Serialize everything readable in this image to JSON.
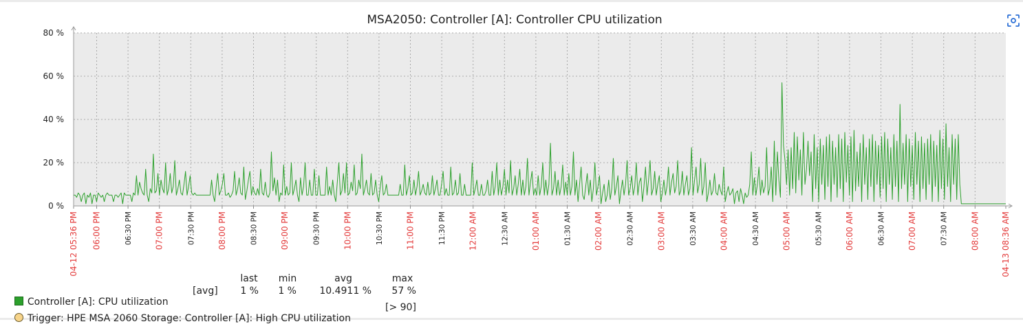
{
  "chart_data": {
    "type": "line",
    "title": "MSA2050: Controller [A]: Controller CPU utilization",
    "y_ticks": [
      "80 %",
      "60 %",
      "40 %",
      "20 %",
      "0 %"
    ],
    "ylim": [
      0,
      80
    ],
    "x_ticks": [
      {
        "label": "04-12 05:36 PM",
        "color": "red"
      },
      {
        "label": "06:00 PM",
        "color": "red"
      },
      {
        "label": "06:30 PM",
        "color": "black"
      },
      {
        "label": "07:00 PM",
        "color": "red"
      },
      {
        "label": "07:30 PM",
        "color": "black"
      },
      {
        "label": "08:00 PM",
        "color": "red"
      },
      {
        "label": "08:30 PM",
        "color": "black"
      },
      {
        "label": "09:00 PM",
        "color": "red"
      },
      {
        "label": "09:30 PM",
        "color": "black"
      },
      {
        "label": "10:00 PM",
        "color": "red"
      },
      {
        "label": "10:30 PM",
        "color": "black"
      },
      {
        "label": "11:00 PM",
        "color": "red"
      },
      {
        "label": "11:30 PM",
        "color": "black"
      },
      {
        "label": "12:00 AM",
        "color": "red"
      },
      {
        "label": "12:30 AM",
        "color": "black"
      },
      {
        "label": "01:00 AM",
        "color": "red"
      },
      {
        "label": "01:30 AM",
        "color": "black"
      },
      {
        "label": "02:00 AM",
        "color": "red"
      },
      {
        "label": "02:30 AM",
        "color": "black"
      },
      {
        "label": "03:00 AM",
        "color": "red"
      },
      {
        "label": "03:30 AM",
        "color": "black"
      },
      {
        "label": "04:00 AM",
        "color": "red"
      },
      {
        "label": "04:30 AM",
        "color": "black"
      },
      {
        "label": "05:00 AM",
        "color": "red"
      },
      {
        "label": "05:30 AM",
        "color": "black"
      },
      {
        "label": "06:00 AM",
        "color": "red"
      },
      {
        "label": "06:30 AM",
        "color": "black"
      },
      {
        "label": "07:00 AM",
        "color": "red"
      },
      {
        "label": "07:30 AM",
        "color": "black"
      },
      {
        "label": "08:00 AM",
        "color": "red"
      },
      {
        "label": "04-13 08:36 AM",
        "color": "red"
      }
    ],
    "series": [
      {
        "name": "Controller [A]: CPU utilization",
        "color": "#2ca02c",
        "values": [
          5,
          5,
          4,
          6,
          5,
          2,
          5,
          6,
          1,
          5,
          4,
          6,
          1,
          5,
          5,
          2,
          6,
          5,
          4,
          5,
          2,
          5,
          6,
          5,
          5,
          5,
          2,
          5,
          5,
          4,
          5,
          6,
          1,
          6,
          5,
          5,
          5,
          5,
          2,
          6,
          5,
          14,
          5,
          11,
          8,
          6,
          5,
          17,
          5,
          2,
          8,
          6,
          24,
          6,
          7,
          15,
          5,
          12,
          8,
          6,
          20,
          5,
          8,
          15,
          6,
          9,
          21,
          5,
          8,
          12,
          6,
          5,
          10,
          16,
          5,
          9,
          14,
          6,
          5,
          6,
          5,
          5,
          5,
          5,
          5,
          5,
          5,
          5,
          5,
          5,
          12,
          5,
          2,
          9,
          15,
          5,
          7,
          10,
          15,
          5,
          5,
          6,
          4,
          5,
          7,
          16,
          5,
          8,
          13,
          6,
          5,
          18,
          3,
          7,
          12,
          16,
          5,
          9,
          6,
          5,
          8,
          5,
          17,
          6,
          5,
          11,
          5,
          4,
          6,
          25,
          7,
          13,
          5,
          12,
          2,
          6,
          5,
          19,
          5,
          9,
          5,
          6,
          20,
          5,
          8,
          12,
          5,
          2,
          13,
          5,
          9,
          20,
          5,
          5,
          12,
          5,
          5,
          17,
          5,
          5,
          14,
          5,
          5,
          5,
          5,
          18,
          5,
          9,
          5,
          12,
          5,
          2,
          11,
          20,
          5,
          7,
          15,
          6,
          20,
          5,
          6,
          11,
          7,
          19,
          5,
          6,
          12,
          8,
          24,
          5,
          8,
          12,
          6,
          5,
          15,
          5,
          6,
          12,
          5,
          2,
          9,
          14,
          5,
          6,
          10,
          5,
          5,
          5,
          5,
          5,
          5,
          5,
          5,
          10,
          5,
          5,
          19,
          5,
          8,
          14,
          5,
          6,
          12,
          5,
          9,
          16,
          5,
          7,
          10,
          6,
          5,
          11,
          5,
          6,
          14,
          5,
          8,
          12,
          5,
          5,
          10,
          16,
          5,
          8,
          5,
          5,
          18,
          5,
          6,
          12,
          5,
          6,
          15,
          5,
          5,
          10,
          5,
          5,
          5,
          5,
          20,
          5,
          8,
          12,
          5,
          5,
          10,
          5,
          5,
          7,
          12,
          5,
          5,
          16,
          5,
          9,
          20,
          5,
          12,
          5,
          9,
          17,
          5,
          12,
          6,
          21,
          5,
          8,
          14,
          5,
          10,
          17,
          5,
          12,
          5,
          9,
          22,
          5,
          11,
          16,
          5,
          8,
          5,
          14,
          5,
          9,
          20,
          5,
          12,
          5,
          10,
          29,
          5,
          8,
          16,
          5,
          12,
          5,
          9,
          19,
          5,
          11,
          5,
          15,
          5,
          9,
          25,
          5,
          12,
          2,
          10,
          18,
          5,
          3,
          9,
          15,
          5,
          12,
          2,
          8,
          20,
          5,
          9,
          14,
          1,
          6,
          10,
          2,
          5,
          12,
          3,
          8,
          22,
          5,
          9,
          14,
          1,
          7,
          12,
          5,
          10,
          21,
          5,
          8,
          14,
          5,
          9,
          20,
          5,
          11,
          13,
          2,
          9,
          18,
          5,
          12,
          21,
          5,
          8,
          16,
          5,
          10,
          14,
          2,
          6,
          12,
          5,
          9,
          18,
          5,
          11,
          15,
          6,
          9,
          21,
          5,
          7,
          16,
          5,
          10,
          14,
          5,
          8,
          27,
          5,
          12,
          18,
          6,
          10,
          22,
          5,
          9,
          20,
          2,
          6,
          12,
          5,
          7,
          15,
          6,
          5,
          10,
          7,
          5,
          18,
          2,
          6,
          9,
          5,
          6,
          8,
          1,
          6,
          7,
          2,
          8,
          5,
          1,
          6,
          4,
          5,
          10,
          25,
          5,
          13,
          5,
          10,
          18,
          5,
          12,
          6,
          9,
          27,
          5,
          8,
          18,
          2,
          30,
          5,
          25,
          12,
          4,
          57,
          28,
          21,
          10,
          26,
          5,
          27,
          8,
          34,
          6,
          32,
          12,
          26,
          5,
          34,
          10,
          17,
          30,
          14,
          25,
          2,
          33,
          8,
          27,
          2,
          31,
          10,
          28,
          3,
          32,
          9,
          33,
          2,
          30,
          10,
          27,
          4,
          33,
          8,
          31,
          2,
          34,
          11,
          28,
          5,
          32,
          2,
          35,
          7,
          25,
          9,
          29,
          2,
          33,
          10,
          27,
          3,
          31,
          9,
          33,
          2,
          30,
          10,
          28,
          4,
          32,
          8,
          34,
          2,
          31,
          10,
          27,
          3,
          33,
          9,
          30,
          2,
          47,
          8,
          29,
          10,
          33,
          2,
          31,
          9,
          28,
          3,
          34,
          10,
          30,
          2,
          32,
          8,
          29,
          3,
          31,
          10,
          33,
          2,
          30,
          9,
          28,
          2,
          35,
          8,
          31,
          3,
          38,
          9,
          27,
          2,
          33,
          10,
          31,
          3,
          33,
          10,
          1,
          1,
          1,
          1,
          1,
          1,
          1,
          1,
          1,
          1,
          1,
          1,
          1,
          1,
          1,
          1,
          1,
          1,
          1,
          1,
          1,
          1,
          1,
          1,
          1,
          1,
          1,
          1,
          1,
          1
        ]
      }
    ]
  },
  "legend": {
    "stats_headers": {
      "last": "last",
      "min": "min",
      "avg": "avg",
      "max": "max"
    },
    "item": {
      "label": "Controller [A]: CPU utilization",
      "func": "[avg]",
      "last": "1 %",
      "min": "1 %",
      "avg": "10.4911 %",
      "max": "57 %"
    },
    "trigger": {
      "label": "Trigger: HPE MSA 2060 Storage: Controller [A]: High CPU utilization",
      "threshold": "[> 90]"
    }
  },
  "colors": {
    "series": "#2ca02c",
    "plot_bg": "#ebebeb",
    "grid": "#a8a8a8",
    "tick_red": "#e33a3a",
    "tick_black": "#1f1f1f"
  },
  "icons": {
    "expand": "focus-scan-icon"
  }
}
